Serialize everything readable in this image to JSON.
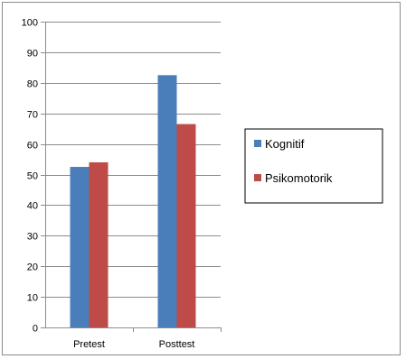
{
  "chart_data": {
    "type": "bar",
    "categories": [
      "Pretest",
      "Posttest"
    ],
    "series": [
      {
        "name": "Kognitif",
        "values": [
          52.5,
          82.5
        ],
        "color": "#4a7ebb"
      },
      {
        "name": "Psikomotorik",
        "values": [
          54,
          66.5
        ],
        "color": "#be4b48"
      }
    ],
    "title": "",
    "xlabel": "",
    "ylabel": "",
    "ylim": [
      0,
      100
    ],
    "yticks": [
      0,
      10,
      20,
      30,
      40,
      50,
      60,
      70,
      80,
      90,
      100
    ],
    "grid": true,
    "legend_position": "right"
  }
}
